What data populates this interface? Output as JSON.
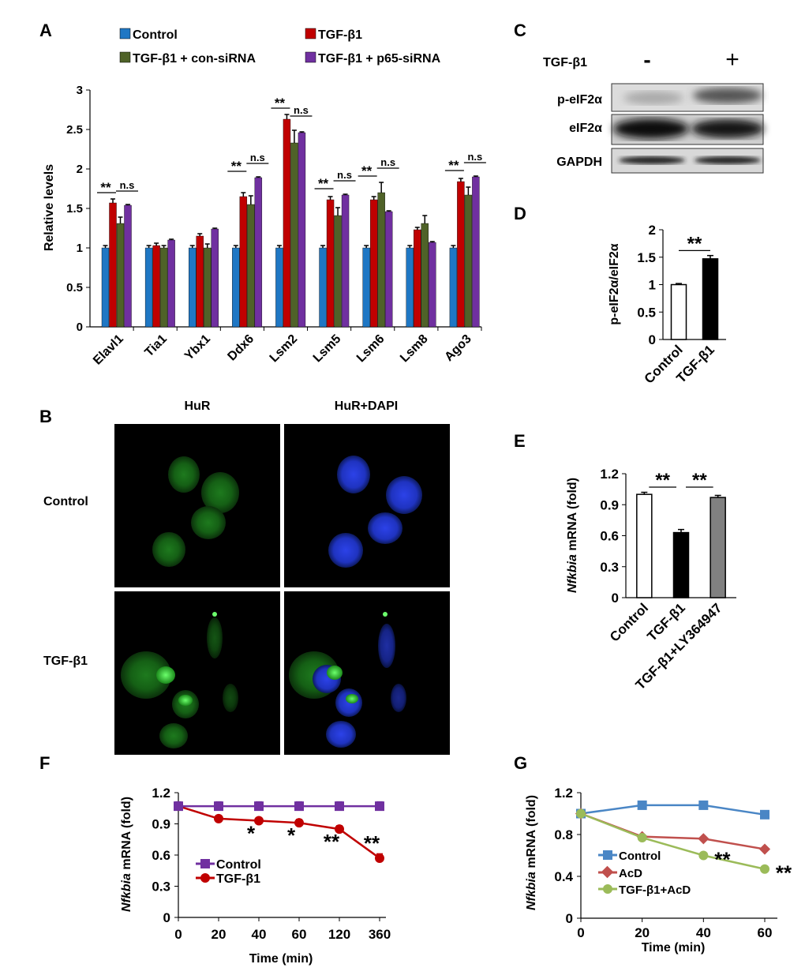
{
  "colors": {
    "control": "#1f77c4",
    "tgf": "#c00000",
    "consirna": "#4f6228",
    "p65": "#7030a0",
    "f_control": "#7030a0",
    "f_tgf": "#c00000",
    "g_control": "#4a86c5",
    "g_acd": "#c0504d",
    "g_tgfacd": "#9bbb59",
    "hur_green": "#2eb82e",
    "dapi_blue": "#2a3cd8"
  },
  "chart_data": [
    {
      "panel": "A",
      "type": "bar",
      "ylabel": "Relative levels",
      "ylim": [
        0,
        3
      ],
      "yticks": [
        "0",
        "0.5",
        "1",
        "1.5",
        "2",
        "2.5",
        "3"
      ],
      "categories": [
        "Elavl1",
        "Tia1",
        "Ybx1",
        "Ddx6",
        "Lsm2",
        "Lsm5",
        "Lsm6",
        "Lsm8",
        "Ago3"
      ],
      "series": [
        {
          "name": "Control",
          "values": [
            1,
            1,
            1,
            1,
            1,
            1,
            1,
            1,
            1
          ],
          "errors": [
            0.03,
            0.03,
            0.03,
            0.03,
            0.03,
            0.03,
            0.03,
            0.03,
            0.03
          ]
        },
        {
          "name": "TGF-β1",
          "values": [
            1.57,
            1.03,
            1.15,
            1.65,
            2.63,
            1.61,
            1.61,
            1.23,
            1.84
          ],
          "errors": [
            0.05,
            0.03,
            0.03,
            0.05,
            0.06,
            0.04,
            0.04,
            0.03,
            0.04
          ]
        },
        {
          "name": "TGF-β1 + con-siRNA",
          "values": [
            1.31,
            1.0,
            1.0,
            1.55,
            2.33,
            1.41,
            1.7,
            1.31,
            1.67
          ],
          "errors": [
            0.08,
            0.03,
            0.05,
            0.11,
            0.16,
            0.1,
            0.13,
            0.1,
            0.1
          ]
        },
        {
          "name": "TGF-β1 + p65-siRNA",
          "values": [
            1.54,
            1.1,
            1.24,
            1.89,
            2.46,
            1.67,
            1.46,
            1.07,
            1.9
          ],
          "errors": [
            0.01,
            0.01,
            0.01,
            0.01,
            0.01,
            0.01,
            0.01,
            0.01,
            0.01
          ]
        }
      ],
      "annotations": [
        {
          "category": "Elavl1",
          "stars": "**",
          "ns": "n.s"
        },
        {
          "category": "Ddx6",
          "stars": "**",
          "ns": "n.s"
        },
        {
          "category": "Lsm2",
          "stars": "**",
          "ns": "n.s"
        },
        {
          "category": "Lsm5",
          "stars": "**",
          "ns": "n.s"
        },
        {
          "category": "Lsm6",
          "stars": "**",
          "ns": "n.s"
        },
        {
          "category": "Ago3",
          "stars": "**",
          "ns": "n.s"
        }
      ]
    },
    {
      "panel": "D",
      "type": "bar",
      "ylabel": "p-eIF2α/eIF2α",
      "ylim": [
        0,
        2
      ],
      "yticks": [
        "0",
        "0.5",
        "1",
        "1.5",
        "2"
      ],
      "categories": [
        "Control",
        "TGF-β1"
      ],
      "values": [
        1.0,
        1.47
      ],
      "errors": [
        0.02,
        0.06
      ],
      "fills": [
        "#ffffff",
        "#000000"
      ],
      "annotation": "**"
    },
    {
      "panel": "E",
      "type": "bar",
      "ylabel_italic": "Nfkbia",
      "ylabel_rest": " mRNA (fold)",
      "ylim": [
        0,
        1.2
      ],
      "yticks": [
        "0",
        "0.3",
        "0.6",
        "0.9",
        "1.2"
      ],
      "categories": [
        "Control",
        "TGF-β1",
        "TGF-β1+LY364947"
      ],
      "values": [
        1.0,
        0.63,
        0.97
      ],
      "errors": [
        0.02,
        0.03,
        0.02
      ],
      "fills": [
        "#ffffff",
        "#000000",
        "#808080"
      ],
      "annotations": [
        "**",
        "**"
      ]
    },
    {
      "panel": "F",
      "type": "line",
      "xlabel": "Time (min)",
      "ylabel_italic": "Nfkbia",
      "ylabel_rest": " mRNA (fold)",
      "ylim": [
        0,
        1.2
      ],
      "yticks": [
        "0",
        "0.3",
        "0.6",
        "0.9",
        "1.2"
      ],
      "x": [
        "0",
        "20",
        "40",
        "60",
        "120",
        "360"
      ],
      "series": [
        {
          "name": "Control",
          "values": [
            1.07,
            1.07,
            1.07,
            1.07,
            1.07,
            1.07
          ],
          "errors": [
            0.04,
            0.04,
            0.04,
            0.04,
            0.04,
            0.04
          ]
        },
        {
          "name": "TGF-β1",
          "values": [
            1.07,
            0.95,
            0.93,
            0.91,
            0.85,
            0.57
          ],
          "errors": [
            0.02,
            0.02,
            0.02,
            0.03,
            0.03,
            0.04
          ]
        }
      ],
      "annotations": [
        {
          "x": "40",
          "text": "*"
        },
        {
          "x": "60",
          "text": "*"
        },
        {
          "x": "120",
          "text": "**"
        },
        {
          "x": "360",
          "text": "**"
        }
      ]
    },
    {
      "panel": "G",
      "type": "line",
      "xlabel": "Time (min)",
      "ylabel_italic": "Nfkbia",
      "ylabel_rest": " mRNA (fold)",
      "ylim": [
        0,
        1.2
      ],
      "yticks": [
        "0",
        "0.4",
        "0.8",
        "1.2"
      ],
      "x": [
        0,
        20,
        40,
        60
      ],
      "xticks": [
        "0",
        "20",
        "40",
        "60"
      ],
      "series": [
        {
          "name": "Control",
          "values": [
            1.0,
            1.08,
            1.08,
            0.99
          ]
        },
        {
          "name": "AcD",
          "values": [
            1.0,
            0.78,
            0.76,
            0.66
          ]
        },
        {
          "name": "TGF-β1+AcD",
          "values": [
            1.0,
            0.77,
            0.6,
            0.47
          ]
        }
      ],
      "annotations": [
        {
          "x": 40,
          "text": "**"
        },
        {
          "x": 60,
          "text": "**"
        }
      ]
    }
  ],
  "panels": {
    "a": "A",
    "b": "B",
    "c": "C",
    "d": "D",
    "e": "E",
    "f": "F",
    "g": "G"
  },
  "panelB": {
    "col1": "HuR",
    "col2": "HuR+DAPI",
    "row1": "Control",
    "row2": "TGF-β1"
  },
  "panelC": {
    "treatment": "TGF-β1",
    "minus": "-",
    "plus": "+",
    "rows": [
      "p-eIF2α",
      "eIF2α",
      "GAPDH"
    ]
  }
}
